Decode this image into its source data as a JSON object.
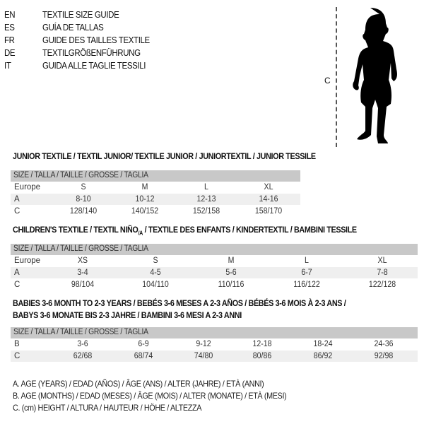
{
  "title_lines": [
    {
      "lang": "EN",
      "text": "TEXTILE SIZE GUIDE"
    },
    {
      "lang": "ES",
      "text": "GUÍA DE TALLAS"
    },
    {
      "lang": "FR",
      "text": "GUIDE DES TAILLES TEXTILE"
    },
    {
      "lang": "DE",
      "text": "TEXTILGRÖßENFÜHRUNG"
    },
    {
      "lang": "IT",
      "text": "GUIDA ALLE TAGLIE TESSILI"
    }
  ],
  "figure": {
    "height_label": "C",
    "icon": "child-silhouette"
  },
  "size_header": "SIZE / TALLA / TAILLE / GRÖSSE / TAGLIA",
  "junior": {
    "heading": "JUNIOR TEXTILE / TEXTIL JUNIOR/ TEXTILE JUNIOR / JUNIORTEXTIL / JUNIOR TESSILE",
    "rows": [
      {
        "label": "Europe",
        "values": [
          "S",
          "M",
          "L",
          "XL"
        ]
      },
      {
        "label": "A",
        "values": [
          "8-10",
          "10-12",
          "12-13",
          "14-16"
        ]
      },
      {
        "label": "C",
        "values": [
          "128/140",
          "140/152",
          "152/158",
          "158/170"
        ]
      }
    ]
  },
  "children": {
    "heading_a": "CHILDREN'S TEXTILE / TEXTIL NIÑO",
    "heading_sub": "/A",
    "heading_b": " / TEXTILE DES ENFANTS / KINDERTEXTIL / BAMBINI TESSILE",
    "rows": [
      {
        "label": "Europe",
        "values": [
          "XS",
          "S",
          "M",
          "L",
          "XL"
        ]
      },
      {
        "label": "A",
        "values": [
          "3-4",
          "4-5",
          "5-6",
          "6-7",
          "7-8"
        ]
      },
      {
        "label": "C",
        "values": [
          "98/104",
          "104/110",
          "110/116",
          "116/122",
          "122/128"
        ]
      }
    ]
  },
  "babies": {
    "heading_1": "BABIES 3-6 MONTH TO 2-3 YEARS / BEBÉS 3-6 MESES A 2-3 AÑOS / BÉBÉS 3-6 MOIS À 2-3 ANS /",
    "heading_2": "BABYS 3-6 MONATE BIS 2-3 JAHRE / BAMBINI 3-6 MESI A 2-3 ANNI",
    "rows": [
      {
        "label": "B",
        "values": [
          "3-6",
          "6-9",
          "9-12",
          "12-18",
          "18-24",
          "24-36"
        ]
      },
      {
        "label": "C",
        "values": [
          "62/68",
          "68/74",
          "74/80",
          "80/86",
          "86/92",
          "92/98"
        ]
      }
    ]
  },
  "legend": [
    "A. AGE (YEARS) / EDAD (AÑOS) / ÂGE (ANS) / ALTER (JAHRE) / ETÀ (ANNI)",
    "B. AGE (MONTHS) / EDAD (MESES) / ÂGE (MOIS) / ALTER (MONATE) / ETÀ (MESI)",
    "C. (cm) HEIGHT / ALTURA / HAUTEUR / HÖHE / ALTEZZA"
  ]
}
